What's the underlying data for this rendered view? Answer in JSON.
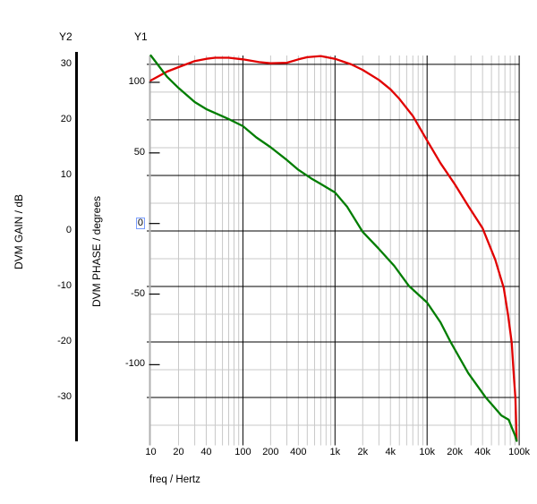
{
  "labels": {
    "y2_name": "Y2",
    "y1_name": "Y1",
    "y2_title": "DVM GAIN / dB",
    "y1_title": "DVM PHASE / degrees",
    "x_title": "freq / Hertz"
  },
  "colors": {
    "background": "#ffffff",
    "gain_curve": "#e10000",
    "phase_curve": "#007d00",
    "major_grid": "#000000",
    "minor_grid": "#c8c8c8",
    "y1_axis_line": "#b0b0b0",
    "y2_axis_line": "#000000",
    "tick_text": "#000000",
    "zero_highlight": "#7a9dff"
  },
  "chart_data": {
    "type": "line",
    "title": "",
    "grid": true,
    "x_axis": {
      "label": "freq / Hertz",
      "scale": "log",
      "min": 10,
      "max": 100000,
      "tick_values": [
        10,
        20,
        40,
        100,
        200,
        400,
        1000,
        2000,
        4000,
        10000,
        20000,
        40000,
        100000
      ],
      "tick_labels": [
        "10",
        "20",
        "40",
        "100",
        "200",
        "400",
        "1k",
        "2k",
        "4k",
        "10k",
        "20k",
        "40k",
        "100k"
      ],
      "major_ticks": [
        100,
        1000,
        10000,
        100000
      ]
    },
    "y2_axis": {
      "label": "DVM GAIN / dB",
      "min": -37.9,
      "max": 31.6,
      "ticks": [
        30,
        20,
        10,
        0,
        -10,
        -20,
        -30
      ],
      "minor_ticks": [
        25,
        15,
        5,
        -5,
        -15,
        -25,
        -35
      ]
    },
    "y1_axis": {
      "label": "DVM PHASE / degrees",
      "min": -154.3,
      "max": 119,
      "ticks": [
        100,
        50,
        0,
        -50,
        -100
      ],
      "highlighted_tick": 0
    },
    "series": [
      {
        "name": "DVM GAIN",
        "axis": "y2",
        "color_key": "gain_curve",
        "points": [
          [
            10,
            27.1
          ],
          [
            15,
            28.7
          ],
          [
            20,
            29.5
          ],
          [
            30,
            30.6
          ],
          [
            40,
            31.0
          ],
          [
            50,
            31.2
          ],
          [
            70,
            31.2
          ],
          [
            100,
            30.9
          ],
          [
            150,
            30.4
          ],
          [
            200,
            30.2
          ],
          [
            300,
            30.3
          ],
          [
            400,
            30.9
          ],
          [
            500,
            31.3
          ],
          [
            700,
            31.5
          ],
          [
            1000,
            31.0
          ],
          [
            1500,
            30.0
          ],
          [
            2000,
            29.0
          ],
          [
            3000,
            27.2
          ],
          [
            4000,
            25.5
          ],
          [
            5000,
            23.8
          ],
          [
            7000,
            20.7
          ],
          [
            10000,
            16.3
          ],
          [
            14000,
            12.2
          ],
          [
            20000,
            8.4
          ],
          [
            28000,
            4.5
          ],
          [
            40000,
            0.5
          ],
          [
            55000,
            -5.2
          ],
          [
            68000,
            -10.3
          ],
          [
            76000,
            -15.3
          ],
          [
            83000,
            -20.2
          ],
          [
            87000,
            -25.6
          ],
          [
            91000,
            -30.2
          ],
          [
            94000,
            -37.8
          ]
        ]
      },
      {
        "name": "DVM PHASE",
        "axis": "y1",
        "color_key": "phase_curve",
        "points": [
          [
            10,
            119
          ],
          [
            15,
            104
          ],
          [
            20,
            96
          ],
          [
            30,
            86
          ],
          [
            40,
            81
          ],
          [
            55,
            77
          ],
          [
            70,
            74
          ],
          [
            100,
            69
          ],
          [
            140,
            61
          ],
          [
            200,
            54
          ],
          [
            300,
            45
          ],
          [
            400,
            38
          ],
          [
            550,
            32
          ],
          [
            700,
            28
          ],
          [
            1000,
            22
          ],
          [
            1350,
            12
          ],
          [
            2000,
            -6
          ],
          [
            3000,
            -18
          ],
          [
            4400,
            -30
          ],
          [
            6300,
            -44
          ],
          [
            10000,
            -56
          ],
          [
            14000,
            -70
          ],
          [
            18000,
            -84
          ],
          [
            28000,
            -106
          ],
          [
            43000,
            -123
          ],
          [
            55000,
            -131
          ],
          [
            64000,
            -136
          ],
          [
            77000,
            -139
          ],
          [
            85000,
            -146
          ],
          [
            90000,
            -150
          ],
          [
            94000,
            -154
          ]
        ]
      }
    ]
  }
}
